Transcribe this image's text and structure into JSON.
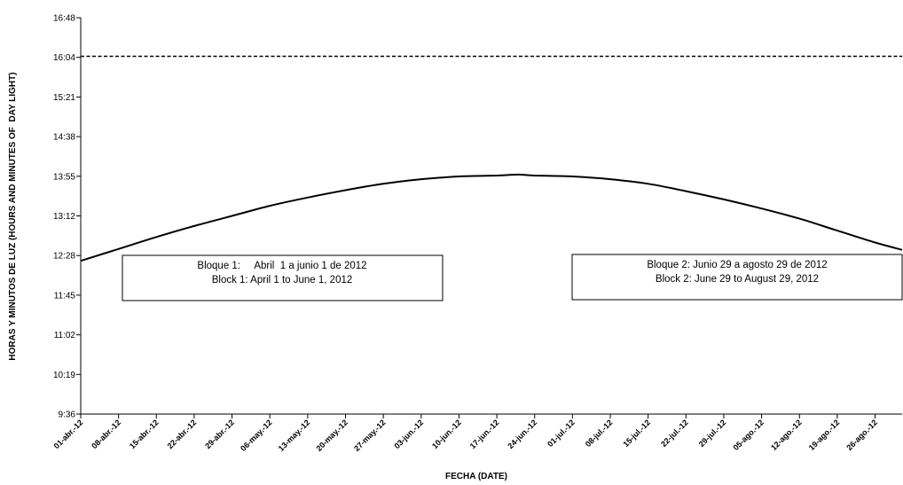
{
  "chart_data": {
    "type": "line",
    "xlabel": "FECHA (DATE)",
    "ylabel": "HORAS Y MINUTOS DE LUZ (HOURS AND MINUTES OF  DAY LIGHT)",
    "y_tick_labels": [
      "9:36",
      "10:19",
      "11:02",
      "11:45",
      "12:28",
      "13:12",
      "13:55",
      "14:38",
      "15:21",
      "16:04",
      "16:48"
    ],
    "ylim_minutes": [
      576,
      1008
    ],
    "x_tick_labels": [
      "01-abr.-12",
      "08-abr.-12",
      "15-abr.-12",
      "22-abr.-12",
      "29-abr.-12",
      "06-may.-12",
      "13-may.-12",
      "20-may.-12",
      "27-may.-12",
      "03-jun.-12",
      "10-jun.-12",
      "17-jun.-12",
      "24-jun.-12",
      "01-jul.-12",
      "08-jul.-12",
      "15-jul.-12",
      "22-jul.-12",
      "29-jul.-12",
      "05-ago.-12",
      "12-ago.-12",
      "19-ago.-12",
      "26-ago.-12"
    ],
    "xlim_dates": [
      "2012-04-01",
      "2012-08-31"
    ],
    "series": [
      {
        "style": "solid",
        "x": [
          "2012-04-01",
          "2012-04-08",
          "2012-04-15",
          "2012-04-22",
          "2012-04-29",
          "2012-05-06",
          "2012-05-13",
          "2012-05-20",
          "2012-05-27",
          "2012-06-03",
          "2012-06-10",
          "2012-06-17",
          "2012-06-21",
          "2012-06-24",
          "2012-07-01",
          "2012-07-08",
          "2012-07-15",
          "2012-07-22",
          "2012-07-29",
          "2012-08-05",
          "2012-08-12",
          "2012-08-19",
          "2012-08-26",
          "2012-08-31"
        ],
        "y_minutes": [
          743,
          756,
          769,
          781,
          792,
          803,
          812,
          820,
          827,
          832,
          835,
          836,
          837,
          836,
          835,
          832,
          827,
          819,
          810,
          800,
          789,
          776,
          763,
          755
        ]
      },
      {
        "style": "dashed",
        "x": [
          "2012-04-01",
          "2012-08-31"
        ],
        "y_minutes": [
          966,
          966
        ]
      }
    ],
    "grid": false,
    "legend": "none"
  },
  "annotations": [
    {
      "line1": "Bloque 1:     Abril  1 a junio 1 de 2012",
      "line2": "Block 1: April 1 to June 1, 2012"
    },
    {
      "line1": "Bloque 2: Junio 29 a agosto 29 de 2012",
      "line2": "Block 2: June 29 to August 29, 2012"
    }
  ]
}
